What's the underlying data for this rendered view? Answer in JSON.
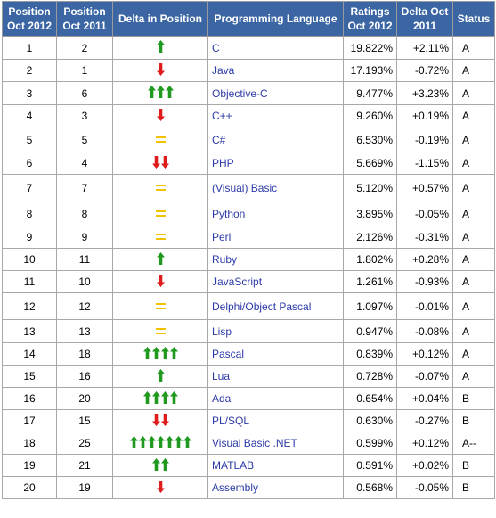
{
  "headers": {
    "pos2012": "Position Oct 2012",
    "pos2011": "Position Oct 2011",
    "delta_pos": "Delta in Position",
    "language": "Programming Language",
    "ratings": "Ratings Oct 2012",
    "delta": "Delta Oct 2011",
    "status": "Status"
  },
  "colors": {
    "header_bg": "#3b66a3",
    "up_arrow": "#1f9a1f",
    "down_arrow": "#e01b1b",
    "equal": "#f2c200",
    "link": "#2b3aa8"
  },
  "rows": [
    {
      "pos2012": "1",
      "pos2011": "2",
      "indicator": "up",
      "count": 1,
      "language": "C",
      "rating": "19.822%",
      "delta": "+2.11%",
      "status": "A"
    },
    {
      "pos2012": "2",
      "pos2011": "1",
      "indicator": "down",
      "count": 1,
      "language": "Java",
      "rating": "17.193%",
      "delta": "-0.72%",
      "status": "A"
    },
    {
      "pos2012": "3",
      "pos2011": "6",
      "indicator": "up",
      "count": 3,
      "language": "Objective-C",
      "rating": "9.477%",
      "delta": "+3.23%",
      "status": "A"
    },
    {
      "pos2012": "4",
      "pos2011": "3",
      "indicator": "down",
      "count": 1,
      "language": "C++",
      "rating": "9.260%",
      "delta": "+0.19%",
      "status": "A"
    },
    {
      "pos2012": "5",
      "pos2011": "5",
      "indicator": "equal",
      "count": 1,
      "language": "C#",
      "rating": "6.530%",
      "delta": "-0.19%",
      "status": "A"
    },
    {
      "pos2012": "6",
      "pos2011": "4",
      "indicator": "down",
      "count": 2,
      "language": "PHP",
      "rating": "5.669%",
      "delta": "-1.15%",
      "status": "A"
    },
    {
      "pos2012": "7",
      "pos2011": "7",
      "indicator": "equal",
      "count": 1,
      "language": "(Visual) Basic",
      "rating": "5.120%",
      "delta": "+0.57%",
      "status": "A"
    },
    {
      "pos2012": "8",
      "pos2011": "8",
      "indicator": "equal",
      "count": 1,
      "language": "Python",
      "rating": "3.895%",
      "delta": "-0.05%",
      "status": "A"
    },
    {
      "pos2012": "9",
      "pos2011": "9",
      "indicator": "equal",
      "count": 1,
      "language": "Perl",
      "rating": "2.126%",
      "delta": "-0.31%",
      "status": "A"
    },
    {
      "pos2012": "10",
      "pos2011": "11",
      "indicator": "up",
      "count": 1,
      "language": "Ruby",
      "rating": "1.802%",
      "delta": "+0.28%",
      "status": "A"
    },
    {
      "pos2012": "11",
      "pos2011": "10",
      "indicator": "down",
      "count": 1,
      "language": "JavaScript",
      "rating": "1.261%",
      "delta": "-0.93%",
      "status": "A"
    },
    {
      "pos2012": "12",
      "pos2011": "12",
      "indicator": "equal",
      "count": 1,
      "language": "Delphi/Object Pascal",
      "rating": "1.097%",
      "delta": "-0.01%",
      "status": "A"
    },
    {
      "pos2012": "13",
      "pos2011": "13",
      "indicator": "equal",
      "count": 1,
      "language": "Lisp",
      "rating": "0.947%",
      "delta": "-0.08%",
      "status": "A"
    },
    {
      "pos2012": "14",
      "pos2011": "18",
      "indicator": "up",
      "count": 4,
      "language": "Pascal",
      "rating": "0.839%",
      "delta": "+0.12%",
      "status": "A"
    },
    {
      "pos2012": "15",
      "pos2011": "16",
      "indicator": "up",
      "count": 1,
      "language": "Lua",
      "rating": "0.728%",
      "delta": "-0.07%",
      "status": "A"
    },
    {
      "pos2012": "16",
      "pos2011": "20",
      "indicator": "up",
      "count": 4,
      "language": "Ada",
      "rating": "0.654%",
      "delta": "+0.04%",
      "status": "B"
    },
    {
      "pos2012": "17",
      "pos2011": "15",
      "indicator": "down",
      "count": 2,
      "language": "PL/SQL",
      "rating": "0.630%",
      "delta": "-0.27%",
      "status": "B"
    },
    {
      "pos2012": "18",
      "pos2011": "25",
      "indicator": "up",
      "count": 7,
      "language": "Visual Basic .NET",
      "rating": "0.599%",
      "delta": "+0.12%",
      "status": "A--"
    },
    {
      "pos2012": "19",
      "pos2011": "21",
      "indicator": "up",
      "count": 2,
      "language": "MATLAB",
      "rating": "0.591%",
      "delta": "+0.02%",
      "status": "B"
    },
    {
      "pos2012": "20",
      "pos2011": "19",
      "indicator": "down",
      "count": 1,
      "language": "Assembly",
      "rating": "0.568%",
      "delta": "-0.05%",
      "status": "B"
    }
  ]
}
